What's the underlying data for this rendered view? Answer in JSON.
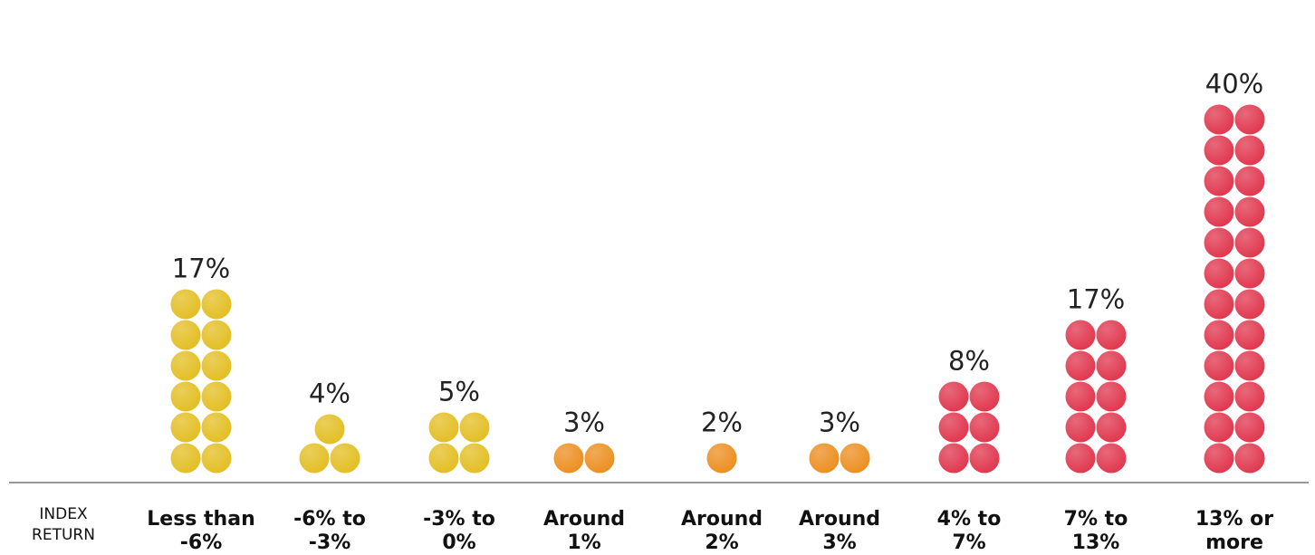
{
  "chart_data": {
    "type": "bar",
    "style": "dot-stack",
    "xlabel_lines": [
      "INDEX",
      "RETURN"
    ],
    "categories": [
      [
        "Less than",
        "-6%"
      ],
      [
        "-6% to",
        "-3%"
      ],
      [
        "-3% to",
        "0%"
      ],
      [
        "Around",
        "1%"
      ],
      [
        "Around",
        "2%"
      ],
      [
        "Around",
        "3%"
      ],
      [
        "4% to",
        "7%"
      ],
      [
        "7% to",
        "13%"
      ],
      [
        "13% or",
        "more"
      ]
    ],
    "values": [
      17,
      4,
      5,
      3,
      2,
      3,
      8,
      17,
      40
    ],
    "value_labels": [
      "17%",
      "4%",
      "5%",
      "3%",
      "2%",
      "3%",
      "8%",
      "17%",
      "40%"
    ],
    "dot_counts": [
      12,
      3,
      4,
      2,
      1,
      2,
      6,
      10,
      24
    ],
    "color_groups": [
      "yellow",
      "yellow",
      "yellow",
      "orange",
      "orange",
      "orange",
      "red",
      "red",
      "red"
    ],
    "colors": {
      "yellow": "#E3BE22",
      "orange": "#EC8E1F",
      "red": "#E0364D"
    },
    "axis_line_color": "#777777"
  }
}
